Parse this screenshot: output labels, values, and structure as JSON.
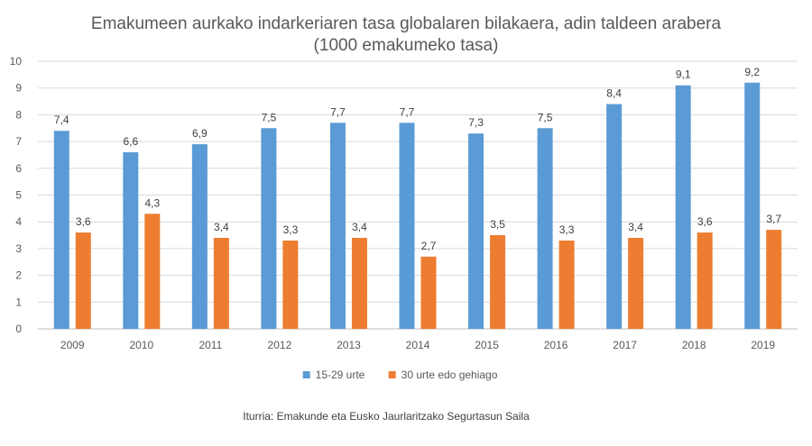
{
  "chart_data": {
    "type": "bar",
    "title": "Emakumeen aurkako indarkeriaren tasa globalaren bilakaera, adin taldeen arabera",
    "subtitle": "(1000 emakumeko tasa)",
    "categories": [
      "2009",
      "2010",
      "2011",
      "2012",
      "2013",
      "2014",
      "2015",
      "2016",
      "2017",
      "2018",
      "2019"
    ],
    "series": [
      {
        "name": "15-29 urte",
        "color": "#5B9BD5",
        "values": [
          7.4,
          6.6,
          6.9,
          7.5,
          7.7,
          7.7,
          7.3,
          7.5,
          8.4,
          9.1,
          9.2
        ],
        "labels": [
          "7,4",
          "6,6",
          "6,9",
          "7,5",
          "7,7",
          "7,7",
          "7,3",
          "7,5",
          "8,4",
          "9,1",
          "9,2"
        ]
      },
      {
        "name": "30 urte edo gehiago",
        "color": "#ED7D31",
        "values": [
          3.6,
          4.3,
          3.4,
          3.3,
          3.4,
          2.7,
          3.5,
          3.3,
          3.4,
          3.6,
          3.7
        ],
        "labels": [
          "3,6",
          "4,3",
          "3,4",
          "3,3",
          "3,4",
          "2,7",
          "3,5",
          "3,3",
          "3,4",
          "3,6",
          "3,7"
        ]
      }
    ],
    "ylim": [
      0,
      10
    ],
    "yticks": [
      0,
      1,
      2,
      3,
      4,
      5,
      6,
      7,
      8,
      9,
      10
    ],
    "xlabel": "",
    "ylabel": "",
    "grid": true,
    "legend": "bottom",
    "source": "Iturria: Emakunde eta Eusko Jaurlaritzako Segurtasun Saila"
  }
}
